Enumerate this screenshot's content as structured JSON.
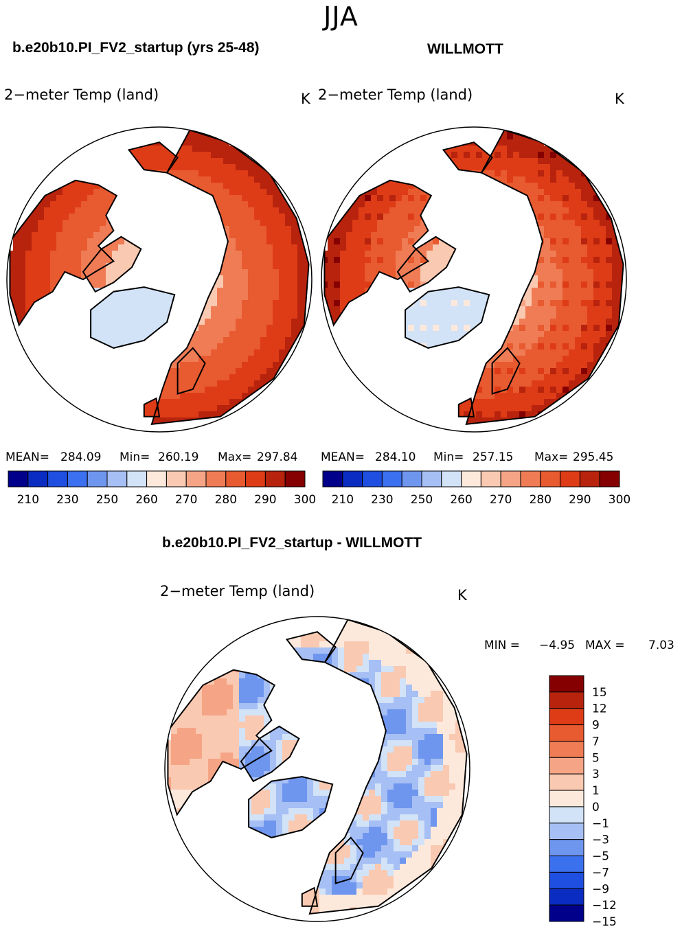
{
  "figure": {
    "season": "JJA"
  },
  "panels": [
    {
      "title": "b.e20b10.PI_FV2_startup (yrs 25-48)",
      "variable": "2−meter Temp (land)",
      "units": "K",
      "stats": {
        "mean_label": "MEAN=",
        "mean": "284.09",
        "min_label": "Min=",
        "min": "260.19",
        "max_label": "Max=",
        "max": "297.84"
      }
    },
    {
      "title": "WILLMOTT",
      "variable": "2−meter Temp (land)",
      "units": "K",
      "stats": {
        "mean_label": "MEAN=",
        "mean": "284.10",
        "min_label": "Min=",
        "min": "257.15",
        "max_label": "Max=",
        "max": "295.45"
      }
    },
    {
      "title": "b.e20b10.PI_FV2_startup - WILLMOTT",
      "variable": "2−meter Temp (land)",
      "units": "K",
      "stats": {
        "min_label": "MIN =",
        "min": "−4.95",
        "max_label": "MAX =",
        "max": "7.03"
      }
    }
  ],
  "colors": {
    "abs_scale": [
      "#00008b",
      "#0a2cc0",
      "#1f4fe0",
      "#3b70ee",
      "#6f96ee",
      "#a6bff4",
      "#d2e2f7",
      "#fde9dc",
      "#fac9b1",
      "#f5a585",
      "#ef7c55",
      "#e85a30",
      "#de3c17",
      "#b7230d",
      "#850000"
    ],
    "diff_scale": [
      "#00008b",
      "#0a2cc0",
      "#1f4fe0",
      "#3b70ee",
      "#6f96ee",
      "#a6bff4",
      "#d2e2f7",
      "#fde9dc",
      "#fac9b1",
      "#f5a585",
      "#ef7c55",
      "#e85a30",
      "#de3c17",
      "#b7230d",
      "#850000"
    ],
    "coastline": "#000000"
  },
  "chart_data": [
    {
      "type": "heatmap",
      "title": "b.e20b10.PI_FV2_startup (yrs 25-48)",
      "projection": "north polar stereographic",
      "variable": "2−meter Temp (land)",
      "units": "K",
      "mean": 284.09,
      "min": 260.19,
      "max": 297.84,
      "colorbar_ticks": [
        "210",
        "230",
        "250",
        "260",
        "270",
        "280",
        "290",
        "300"
      ]
    },
    {
      "type": "heatmap",
      "title": "WILLMOTT",
      "projection": "north polar stereographic",
      "variable": "2−meter Temp (land)",
      "units": "K",
      "mean": 284.1,
      "min": 257.15,
      "max": 295.45,
      "colorbar_ticks": [
        "210",
        "230",
        "250",
        "260",
        "270",
        "280",
        "290",
        "300"
      ]
    },
    {
      "type": "heatmap",
      "title": "b.e20b10.PI_FV2_startup - WILLMOTT",
      "projection": "north polar stereographic",
      "variable": "2−meter Temp (land)",
      "units": "K",
      "min": -4.95,
      "max": 7.03,
      "colorbar_ticks": [
        "15",
        "12",
        "9",
        "7",
        "5",
        "3",
        "1",
        "0",
        "−1",
        "−3",
        "−5",
        "−7",
        "−9",
        "−12",
        "−15"
      ]
    }
  ]
}
